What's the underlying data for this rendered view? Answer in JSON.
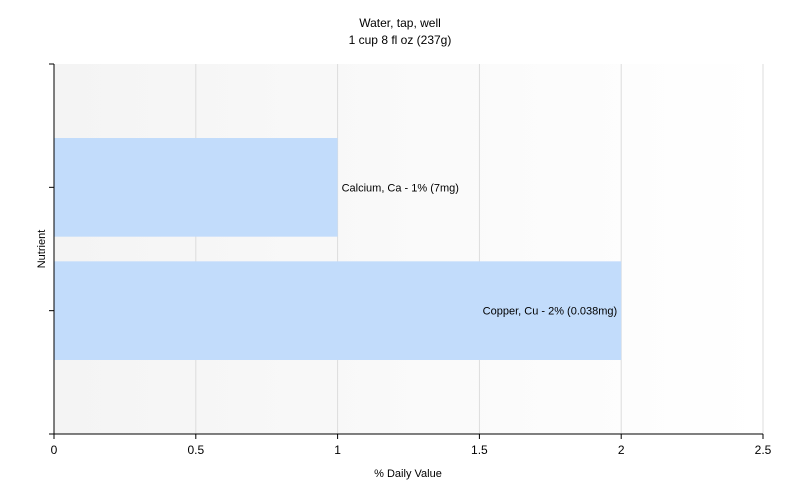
{
  "chart_data": {
    "type": "bar",
    "orientation": "horizontal",
    "title": "Water, tap, well",
    "subtitle": "1 cup 8 fl oz (237g)",
    "xlabel": "% Daily Value",
    "ylabel": "Nutrient",
    "xlim": [
      0,
      2.5
    ],
    "xticks": [
      "0",
      "0.5",
      "1",
      "1.5",
      "2",
      "2.5"
    ],
    "grid": true,
    "categories": [
      "Calcium, Ca",
      "Copper, Cu"
    ],
    "values": [
      1,
      2
    ],
    "labels": [
      "Calcium, Ca - 1% (7mg)",
      "Copper, Cu - 2% (0.038mg)"
    ],
    "colors": {
      "bar": "#c2dcfb",
      "plot_bg_start": "#f4f4f4",
      "plot_bg_end": "#ffffff",
      "grid": "#dcdcdc",
      "axis": "#000000"
    }
  }
}
